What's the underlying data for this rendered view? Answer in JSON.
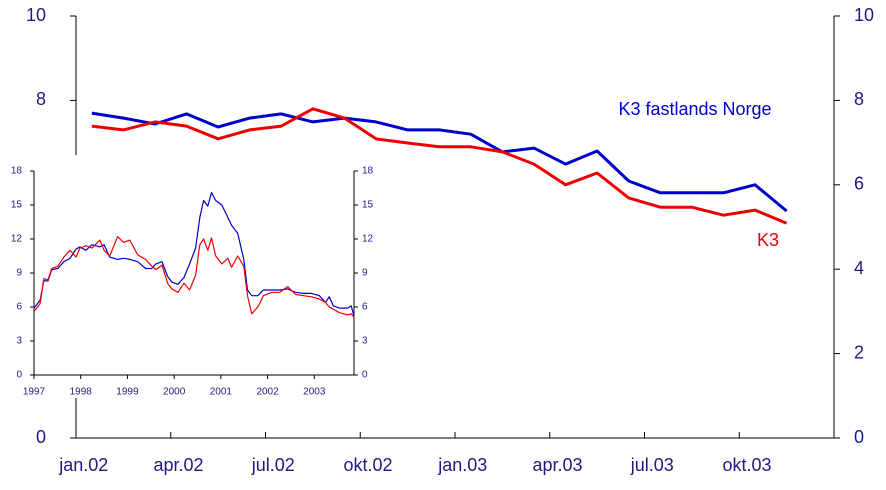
{
  "chart_data": [
    {
      "type": "line",
      "categories": [
        "jan.02",
        null,
        null,
        "apr.02",
        null,
        null,
        "jul.02",
        null,
        null,
        "okt.02",
        null,
        null,
        "jan.03",
        null,
        null,
        "apr.03",
        null,
        null,
        "jul.03",
        null,
        null,
        "okt.03",
        null
      ],
      "series": [
        {
          "name": "K3 fastlands Norge",
          "color": "#0000cc",
          "values": [
            7.7,
            7.58,
            7.44,
            7.68,
            7.37,
            7.58,
            7.68,
            7.49,
            7.58,
            7.49,
            7.3,
            7.3,
            7.2,
            6.78,
            6.87,
            6.49,
            6.8,
            6.09,
            5.81,
            5.81,
            5.81,
            6.0,
            5.38
          ]
        },
        {
          "name": "K3",
          "color": "#ee0000",
          "values": [
            7.39,
            7.3,
            7.49,
            7.39,
            7.09,
            7.3,
            7.39,
            7.8,
            7.58,
            7.09,
            6.99,
            6.9,
            6.9,
            6.78,
            6.49,
            6.0,
            6.28,
            5.69,
            5.47,
            5.47,
            5.28,
            5.4,
            5.09
          ]
        }
      ],
      "ylim": [
        0,
        10
      ],
      "yticks": [
        0,
        2,
        4,
        6,
        8,
        10
      ],
      "y2lim": [
        0,
        10
      ],
      "y2ticks": [
        0,
        2,
        4,
        6,
        8,
        10
      ]
    },
    {
      "type": "line",
      "x": [
        1997.0,
        1997.13,
        1997.21,
        1997.3,
        1997.38,
        1997.51,
        1997.64,
        1997.77,
        1997.9,
        1997.98,
        1998.11,
        1998.24,
        1998.41,
        1998.5,
        1998.62,
        1998.79,
        1998.92,
        1999.05,
        1999.22,
        1999.39,
        1999.52,
        1999.61,
        1999.74,
        1999.86,
        1999.95,
        2000.08,
        2000.21,
        2000.33,
        2000.46,
        2000.55,
        2000.63,
        2000.72,
        2000.8,
        2000.89,
        2001.02,
        2001.15,
        2001.23,
        2001.36,
        2001.49,
        2001.57,
        2001.66,
        2001.79,
        2001.91,
        2002.09,
        2002.26,
        2002.43,
        2002.6,
        2002.77,
        2002.94,
        2003.11,
        2003.24,
        2003.32,
        2003.41,
        2003.54,
        2003.71,
        2003.79,
        2003.85
      ],
      "series": [
        {
          "name": "K3 fastlands Norge",
          "color": "#0000cc",
          "values": [
            5.9,
            6.6,
            8.3,
            8.3,
            9.3,
            9.4,
            10.0,
            10.3,
            11.1,
            11.3,
            11.0,
            11.5,
            11.3,
            11.5,
            10.4,
            10.2,
            10.3,
            10.2,
            10.0,
            9.4,
            9.4,
            9.8,
            10.0,
            8.7,
            8.2,
            8.0,
            8.6,
            9.8,
            11.2,
            13.9,
            15.4,
            14.9,
            16.1,
            15.4,
            15.0,
            13.9,
            13.2,
            12.5,
            10.2,
            7.5,
            7.0,
            7.0,
            7.5,
            7.5,
            7.5,
            7.6,
            7.3,
            7.2,
            7.2,
            7.0,
            6.4,
            6.9,
            6.1,
            5.9,
            5.9,
            6.1,
            5.2
          ]
        },
        {
          "name": "K3",
          "color": "#ee0000",
          "values": [
            5.6,
            6.3,
            8.5,
            8.4,
            9.4,
            9.6,
            10.4,
            11.0,
            10.4,
            11.2,
            11.4,
            11.2,
            11.9,
            11.0,
            10.5,
            12.2,
            11.7,
            11.9,
            10.6,
            10.2,
            9.6,
            9.3,
            9.7,
            8.1,
            7.6,
            7.3,
            8.1,
            7.5,
            8.8,
            11.5,
            12.0,
            11.0,
            12.1,
            10.5,
            9.8,
            10.3,
            9.5,
            10.5,
            9.6,
            7.0,
            5.4,
            6.0,
            7.0,
            7.3,
            7.3,
            7.8,
            7.1,
            7.0,
            6.9,
            6.7,
            6.4,
            6.0,
            5.8,
            5.5,
            5.3,
            5.4,
            5.1
          ]
        }
      ],
      "xlim": [
        1997,
        2003.85
      ],
      "xticks": [
        1997,
        1998,
        1999,
        2000,
        2001,
        2002,
        2003
      ],
      "ylim": [
        0,
        18
      ],
      "yticks": [
        0,
        3,
        6,
        9,
        12,
        15,
        18
      ],
      "y2lim": [
        0,
        18
      ],
      "y2ticks": [
        0,
        3,
        6,
        9,
        12,
        15,
        18
      ]
    }
  ]
}
